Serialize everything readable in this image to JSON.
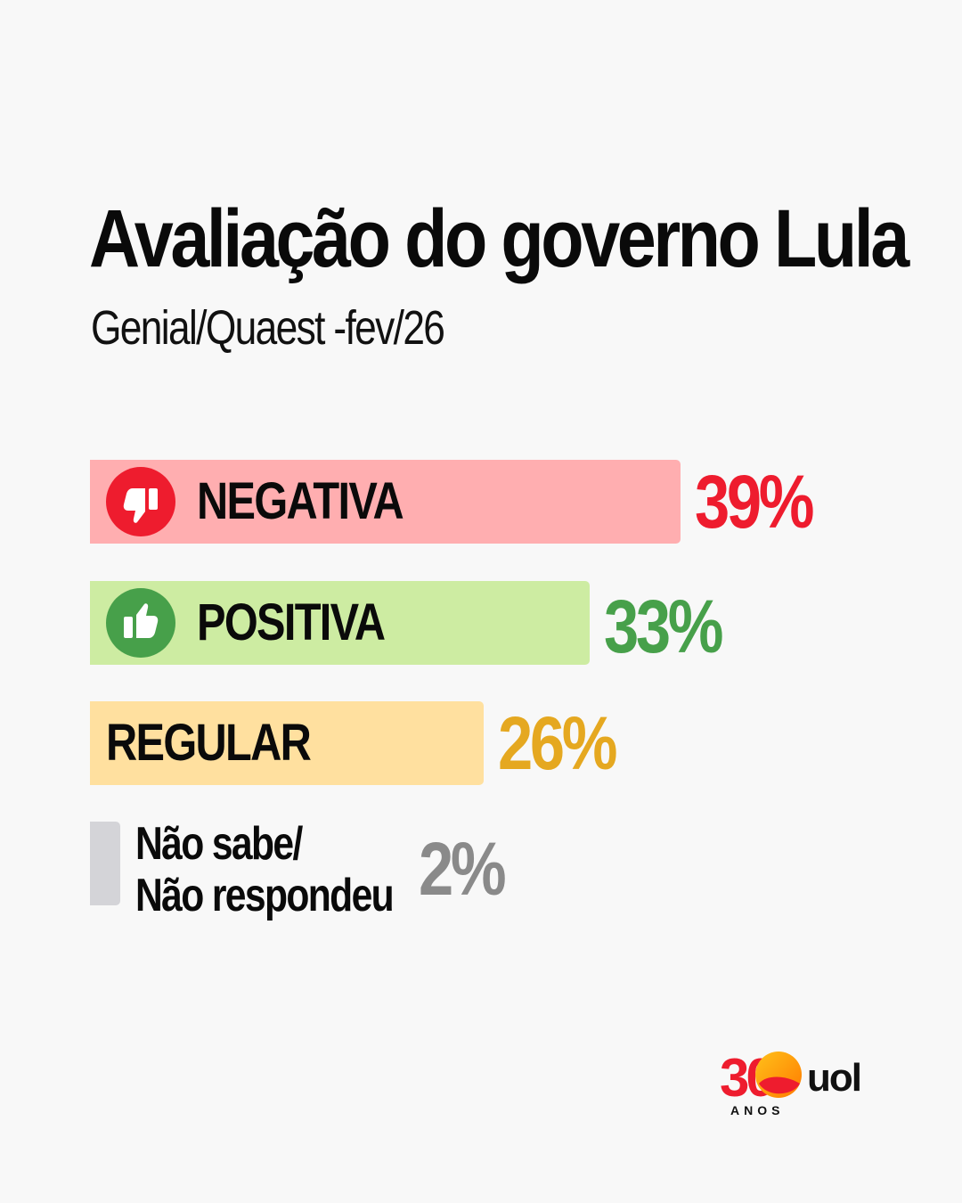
{
  "title": "Avaliação do governo Lula",
  "subtitle": "Genial/Quaest -fev/26",
  "colors": {
    "negativa_bar": "#ffaeb0",
    "negativa_text": "#ee1c2e",
    "positiva_bar": "#cdeca2",
    "positiva_text": "#47a04a",
    "regular_bar": "#ffe09f",
    "regular_text": "#e5a820",
    "ns_bar": "#d4d4d8",
    "ns_text": "#8a8a8a"
  },
  "chart_data": {
    "type": "bar",
    "orientation": "horizontal",
    "title": "Avaliação do governo Lula",
    "subtitle": "Genial/Quaest -fev/26",
    "categories": [
      "NEGATIVA",
      "POSITIVA",
      "REGULAR",
      "Não sabe/\nNão respondeu"
    ],
    "values": [
      39,
      33,
      26,
      2
    ],
    "value_labels": [
      "39%",
      "33%",
      "26%",
      "2%"
    ],
    "ns_label_lines": [
      "Não sabe/",
      "Não respondeu"
    ],
    "icons": [
      "thumbs-down-icon",
      "thumbs-up-icon",
      "",
      ""
    ],
    "grid": false,
    "legend": "none"
  },
  "logo": {
    "number": "30",
    "brand": "uol",
    "anos": "ANOS"
  }
}
